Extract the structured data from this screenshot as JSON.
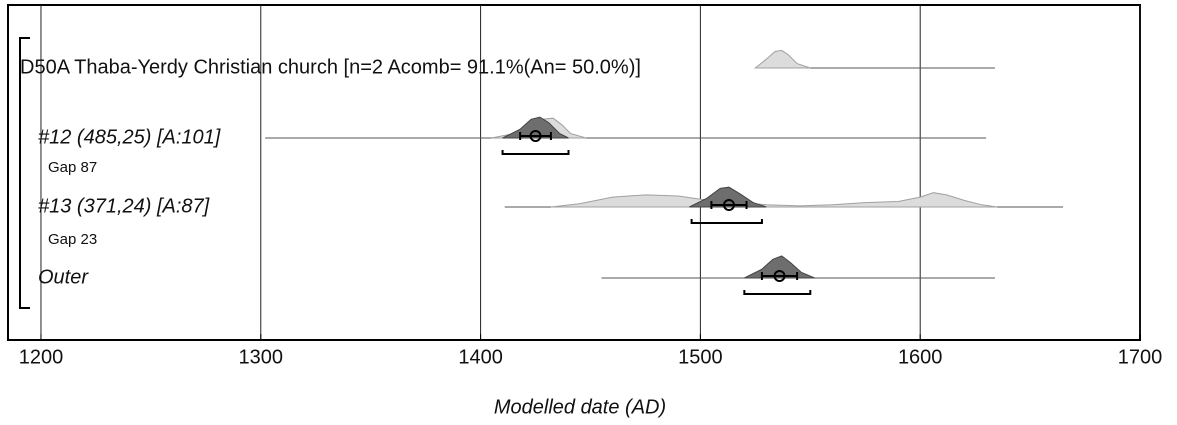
{
  "chart_data": {
    "type": "oxcal",
    "xlabel": "Modelled date (AD)",
    "xlim": [
      1185,
      1700
    ],
    "xticks": [
      1200,
      1300,
      1400,
      1500,
      1600,
      1700
    ],
    "grid": true,
    "group": {
      "label": "D50A Thaba-Yerdy Christian church [n=2 Acomb= 91.1%(An= 50.0%)]",
      "line": [
        1530,
        1634
      ],
      "prior": {
        "x": [
          1525,
          1530,
          1534,
          1537,
          1540,
          1544,
          1550
        ],
        "y": [
          0,
          0.4,
          0.75,
          0.8,
          0.6,
          0.2,
          0
        ]
      }
    },
    "items": [
      {
        "label": "#12 (485,25) [A:101]",
        "line": [
          1302,
          1630
        ],
        "prior": {
          "x": [
            1405,
            1415,
            1422,
            1428,
            1433,
            1437,
            1441,
            1448
          ],
          "y": [
            0,
            0.2,
            0.6,
            0.85,
            0.9,
            0.6,
            0.2,
            0
          ]
        },
        "posterior": {
          "x": [
            1410,
            1418,
            1423,
            1427,
            1431,
            1436,
            1440
          ],
          "y": [
            0,
            0.4,
            0.85,
            0.95,
            0.7,
            0.2,
            0
          ]
        },
        "mean": 1425,
        "sigma": [
          1418,
          1432
        ],
        "range": [
          1410,
          1440
        ]
      },
      {
        "label": "Gap 87",
        "gap": true
      },
      {
        "label": "#13 (371,24) [A:87]",
        "line": [
          1411,
          1665
        ],
        "prior": {
          "x": [
            1432,
            1445,
            1460,
            1475,
            1490,
            1500,
            1510,
            1520,
            1530,
            1545,
            1560,
            1575,
            1590,
            1600,
            1606,
            1612,
            1620,
            1628,
            1635
          ],
          "y": [
            0,
            0.15,
            0.45,
            0.55,
            0.5,
            0.35,
            0.3,
            0.2,
            0.1,
            0.05,
            0.1,
            0.2,
            0.25,
            0.45,
            0.65,
            0.55,
            0.3,
            0.1,
            0
          ]
        },
        "posterior": {
          "x": [
            1495,
            1503,
            1509,
            1513,
            1518,
            1524,
            1530
          ],
          "y": [
            0,
            0.4,
            0.85,
            0.9,
            0.6,
            0.2,
            0
          ]
        },
        "mean": 1513,
        "sigma": [
          1505,
          1521
        ],
        "range": [
          1496,
          1528
        ]
      },
      {
        "label": "Gap 23",
        "gap": true
      },
      {
        "label": "Outer",
        "line": [
          1455,
          1634
        ],
        "posterior": {
          "x": [
            1520,
            1528,
            1533,
            1537,
            1541,
            1546,
            1552
          ],
          "y": [
            0,
            0.4,
            0.85,
            1,
            0.7,
            0.25,
            0
          ]
        },
        "mean": 1536,
        "sigma": [
          1528,
          1544
        ],
        "range": [
          1520,
          1550
        ]
      }
    ]
  }
}
